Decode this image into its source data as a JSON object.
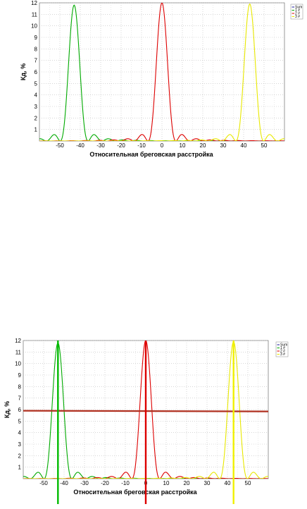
{
  "chart_data": [
    {
      "type": "line",
      "title": "",
      "xlabel": "Относительная бреговская расстройка",
      "ylabel": "Кд, %",
      "xlim": [
        -60,
        60
      ],
      "ylim": [
        0,
        12
      ],
      "xticks": [
        "-50",
        "-40",
        "-30",
        "-20",
        "-10",
        "0",
        "10",
        "20",
        "30",
        "40",
        "50"
      ],
      "yticks": [
        "1",
        "2",
        "3",
        "4",
        "5",
        "6",
        "7",
        "8",
        "9",
        "10",
        "11",
        "12"
      ],
      "grid": true,
      "legend_position": "top-right",
      "legend": [
        "Sum",
        "1 #",
        "2 #",
        "3 #"
      ],
      "series": [
        {
          "name": "1 #",
          "color": "#00aa00",
          "center": -43,
          "peak": 11.8
        },
        {
          "name": "2 #",
          "color": "#dd0000",
          "center": 0,
          "peak": 12.0
        },
        {
          "name": "3 #",
          "color": "#e8e800",
          "center": 43,
          "peak": 11.9
        }
      ],
      "markers": []
    },
    {
      "type": "line",
      "title": "",
      "xlabel": "Относительная бреговская расстройка",
      "ylabel": "Кд, %",
      "xlim": [
        -60,
        60
      ],
      "ylim": [
        0,
        12
      ],
      "xticks": [
        "-50",
        "-40",
        "-30",
        "-20",
        "-10",
        "0",
        "10",
        "20",
        "30",
        "40",
        "50"
      ],
      "yticks": [
        "1",
        "2",
        "3",
        "4",
        "5",
        "6",
        "7",
        "8",
        "9",
        "10",
        "11",
        "12"
      ],
      "grid": true,
      "legend_position": "top-right",
      "legend": [
        "Sum",
        "1 #",
        "2 #",
        "3 #"
      ],
      "series": [
        {
          "name": "1 #",
          "color": "#00aa00",
          "center": -43,
          "peak": 11.8
        },
        {
          "name": "2 #",
          "color": "#dd0000",
          "center": 0,
          "peak": 12.0
        },
        {
          "name": "3 #",
          "color": "#e8e800",
          "center": 43,
          "peak": 11.9
        }
      ],
      "markers": [
        {
          "type": "horizontal",
          "y": 5.9,
          "color": "#b03020"
        },
        {
          "type": "vertical",
          "x": -43,
          "color": "#00bb00"
        },
        {
          "type": "vertical",
          "x": 0,
          "color": "#dd0000"
        },
        {
          "type": "vertical",
          "x": 43,
          "color": "#f0f000"
        }
      ]
    }
  ]
}
